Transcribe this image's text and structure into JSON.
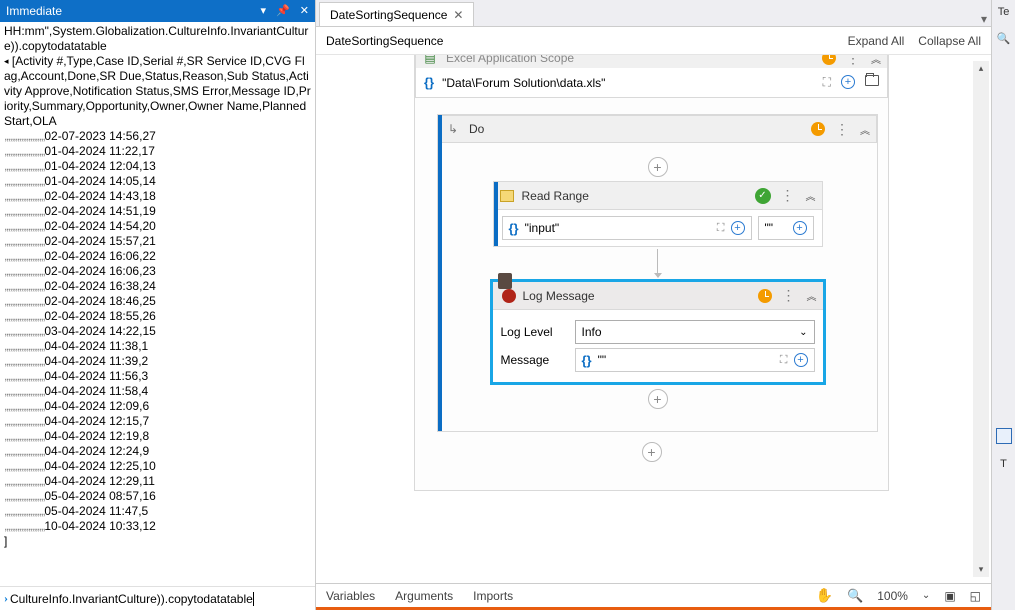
{
  "immediate": {
    "title": "Immediate",
    "topExpr1": "HH:mm\",System.Globalization.CultureInfo.InvariantCulture)).copytodatatable",
    "headerLine": "[Activity #,Type,Case ID,Serial #,SR Service ID,CVG Flag,Account,Done,SR Due,Status,Reason,Sub Status,Activity Approve,Notification Status,SMS Error,Message ID,Priority,Summary,Opportunity,Owner,Owner Name,Planned Start,OLA",
    "rows": [
      "02-07-2023 14:56,27",
      "01-04-2024 11:22,17",
      "01-04-2024 12:04,13",
      "01-04-2024 14:05,14",
      "02-04-2024 14:43,18",
      "02-04-2024 14:51,19",
      "02-04-2024 14:54,20",
      "02-04-2024 15:57,21",
      "02-04-2024 16:06,22",
      "02-04-2024 16:06,23",
      "02-04-2024 16:38,24",
      "02-04-2024 18:46,25",
      "02-04-2024 18:55,26",
      "03-04-2024 14:22,15",
      "04-04-2024 11:38,1",
      "04-04-2024 11:39,2",
      "04-04-2024 11:56,3",
      "04-04-2024 11:58,4",
      "04-04-2024 12:09,6",
      "04-04-2024 12:15,7",
      "04-04-2024 12:19,8",
      "04-04-2024 12:24,9",
      "04-04-2024 12:25,10",
      "04-04-2024 12:29,11",
      "05-04-2024 08:57,16",
      "05-04-2024 11:47,5",
      "10-04-2024 10:33,12"
    ],
    "trail": "]",
    "input": "CultureInfo.InvariantCulture)).copytodatatable"
  },
  "tab": {
    "label": "DateSortingSequence",
    "breadcrumb": "DateSortingSequence"
  },
  "header": {
    "expand": "Expand All",
    "collapse": "Collapse All"
  },
  "scope": {
    "title": "Excel Application Scope",
    "expr": "\"Data\\Forum Solution\\data.xls\""
  },
  "doBox": {
    "title": "Do"
  },
  "readRange": {
    "title": "Read Range",
    "input": "\"input\"",
    "output": "\"\""
  },
  "logMsg": {
    "title": "Log Message",
    "levelLabel": "Log Level",
    "levelValue": "Info",
    "msgLabel": "Message",
    "msgValue": "\"\""
  },
  "status": {
    "variables": "Variables",
    "arguments": "Arguments",
    "imports": "Imports",
    "zoom": "100%"
  },
  "far": {
    "top": "Te",
    "bottom": "T"
  }
}
